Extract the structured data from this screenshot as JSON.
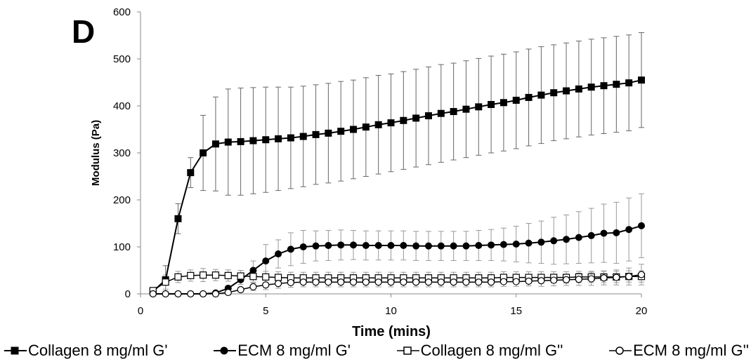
{
  "panel_letter": "D",
  "chart_data": {
    "type": "line",
    "xlabel": "Time (mins)",
    "ylabel": "Modulus (Pa)",
    "xlim": [
      0,
      20
    ],
    "ylim": [
      0,
      600
    ],
    "xticks": [
      0,
      5,
      10,
      15,
      20
    ],
    "yticks": [
      0,
      100,
      200,
      300,
      400,
      500,
      600
    ],
    "grid": false,
    "legend_position": "bottom",
    "series": [
      {
        "name": "Collagen 8 mg/ml G'",
        "marker": "square-filled",
        "points": [
          [
            0.5,
            5
          ],
          [
            1.0,
            30
          ],
          [
            1.5,
            160
          ],
          [
            2.0,
            258
          ],
          [
            2.5,
            300
          ],
          [
            3.0,
            319
          ],
          [
            3.5,
            323
          ],
          [
            4.0,
            324
          ],
          [
            4.5,
            326
          ],
          [
            5.0,
            328
          ],
          [
            5.5,
            330
          ],
          [
            6.0,
            332
          ],
          [
            6.5,
            335
          ],
          [
            7.0,
            339
          ],
          [
            7.5,
            342
          ],
          [
            8.0,
            346
          ],
          [
            8.5,
            350
          ],
          [
            9.0,
            355
          ],
          [
            9.5,
            360
          ],
          [
            10.0,
            364
          ],
          [
            10.5,
            369
          ],
          [
            11.0,
            374
          ],
          [
            11.5,
            379
          ],
          [
            12.0,
            384
          ],
          [
            12.5,
            388
          ],
          [
            13.0,
            393
          ],
          [
            13.5,
            398
          ],
          [
            14.0,
            403
          ],
          [
            14.5,
            407
          ],
          [
            15.0,
            412
          ],
          [
            15.5,
            418
          ],
          [
            16.0,
            423
          ],
          [
            16.5,
            428
          ],
          [
            17.0,
            432
          ],
          [
            17.5,
            436
          ],
          [
            18.0,
            440
          ],
          [
            18.5,
            443
          ],
          [
            19.0,
            446
          ],
          [
            19.5,
            449
          ],
          [
            20.0,
            455
          ]
        ],
        "errors": [
          3,
          30,
          32,
          32,
          80,
          100,
          113,
          114,
          113,
          112,
          110,
          108,
          107,
          106,
          106,
          106,
          105,
          105,
          105,
          104,
          104,
          104,
          104,
          104,
          103,
          103,
          103,
          103,
          103,
          103,
          103,
          103,
          102,
          102,
          102,
          102,
          102,
          102,
          102,
          101
        ]
      },
      {
        "name": "ECM 8 mg/ml G'",
        "marker": "circle-filled",
        "points": [
          [
            0.5,
            0
          ],
          [
            1.0,
            0
          ],
          [
            1.5,
            0
          ],
          [
            2.0,
            0
          ],
          [
            2.5,
            0
          ],
          [
            3.0,
            2
          ],
          [
            3.5,
            12
          ],
          [
            4.0,
            30
          ],
          [
            4.5,
            50
          ],
          [
            5.0,
            70
          ],
          [
            5.5,
            85
          ],
          [
            6.0,
            95
          ],
          [
            6.5,
            100
          ],
          [
            7.0,
            102
          ],
          [
            7.5,
            103
          ],
          [
            8.0,
            104
          ],
          [
            8.5,
            104
          ],
          [
            9.0,
            103
          ],
          [
            9.5,
            103
          ],
          [
            10.0,
            103
          ],
          [
            10.5,
            103
          ],
          [
            11.0,
            102
          ],
          [
            11.5,
            102
          ],
          [
            12.0,
            102
          ],
          [
            12.5,
            102
          ],
          [
            13.0,
            102
          ],
          [
            13.5,
            103
          ],
          [
            14.0,
            104
          ],
          [
            14.5,
            105
          ],
          [
            15.0,
            106
          ],
          [
            15.5,
            108
          ],
          [
            16.0,
            110
          ],
          [
            16.5,
            113
          ],
          [
            17.0,
            116
          ],
          [
            17.5,
            120
          ],
          [
            18.0,
            124
          ],
          [
            18.5,
            129
          ],
          [
            19.0,
            130
          ],
          [
            19.5,
            137
          ],
          [
            20.0,
            145
          ]
        ],
        "errors": [
          0,
          0,
          0,
          0,
          0,
          2,
          5,
          10,
          20,
          35,
          30,
          35,
          35,
          32,
          32,
          32,
          31,
          31,
          31,
          31,
          31,
          31,
          31,
          31,
          31,
          31,
          32,
          33,
          35,
          38,
          42,
          45,
          50,
          52,
          55,
          58,
          62,
          65,
          67,
          68
        ]
      },
      {
        "name": "Collagen 8 mg/ml G''",
        "marker": "square-open",
        "points": [
          [
            0.5,
            7
          ],
          [
            1.0,
            25
          ],
          [
            1.5,
            36
          ],
          [
            2.0,
            39
          ],
          [
            2.5,
            40
          ],
          [
            3.0,
            40
          ],
          [
            3.5,
            39
          ],
          [
            4.0,
            38
          ],
          [
            4.5,
            37
          ],
          [
            5.0,
            36
          ],
          [
            5.5,
            35
          ],
          [
            6.0,
            34
          ],
          [
            6.5,
            34
          ],
          [
            7.0,
            34
          ],
          [
            7.5,
            34
          ],
          [
            8.0,
            34
          ],
          [
            8.5,
            34
          ],
          [
            9.0,
            34
          ],
          [
            9.5,
            34
          ],
          [
            10.0,
            34
          ],
          [
            10.5,
            34
          ],
          [
            11.0,
            34
          ],
          [
            11.5,
            34
          ],
          [
            12.0,
            34
          ],
          [
            12.5,
            34
          ],
          [
            13.0,
            34
          ],
          [
            13.5,
            34
          ],
          [
            14.0,
            34
          ],
          [
            14.5,
            35
          ],
          [
            15.0,
            35
          ],
          [
            15.5,
            35
          ],
          [
            16.0,
            35
          ],
          [
            16.5,
            35
          ],
          [
            17.0,
            35
          ],
          [
            17.5,
            36
          ],
          [
            18.0,
            36
          ],
          [
            18.5,
            36
          ],
          [
            19.0,
            36
          ],
          [
            19.5,
            37
          ],
          [
            20.0,
            37
          ]
        ],
        "errors": [
          5,
          15,
          12,
          12,
          14,
          12,
          12,
          12,
          12,
          12,
          12,
          12,
          12,
          12,
          12,
          12,
          12,
          12,
          12,
          12,
          12,
          12,
          12,
          12,
          12,
          12,
          12,
          12,
          12,
          12,
          12,
          12,
          12,
          12,
          12,
          12,
          12,
          12,
          12,
          12
        ]
      },
      {
        "name": "ECM 8 mg/ml G''",
        "marker": "circle-open",
        "points": [
          [
            0.5,
            0
          ],
          [
            1.0,
            0
          ],
          [
            1.5,
            0
          ],
          [
            2.0,
            0
          ],
          [
            2.5,
            0
          ],
          [
            3.0,
            0
          ],
          [
            3.5,
            3
          ],
          [
            4.0,
            9
          ],
          [
            4.5,
            15
          ],
          [
            5.0,
            19
          ],
          [
            5.5,
            22
          ],
          [
            6.0,
            24
          ],
          [
            6.5,
            25
          ],
          [
            7.0,
            25
          ],
          [
            7.5,
            25
          ],
          [
            8.0,
            25
          ],
          [
            8.5,
            25
          ],
          [
            9.0,
            25
          ],
          [
            9.5,
            25
          ],
          [
            10.0,
            25
          ],
          [
            10.5,
            25
          ],
          [
            11.0,
            25
          ],
          [
            11.5,
            25
          ],
          [
            12.0,
            25
          ],
          [
            12.5,
            25
          ],
          [
            13.0,
            25
          ],
          [
            13.5,
            25
          ],
          [
            14.0,
            25
          ],
          [
            14.5,
            26
          ],
          [
            15.0,
            26
          ],
          [
            15.5,
            27
          ],
          [
            16.0,
            28
          ],
          [
            16.5,
            29
          ],
          [
            17.0,
            30
          ],
          [
            17.5,
            31
          ],
          [
            18.0,
            32
          ],
          [
            18.5,
            34
          ],
          [
            19.0,
            35
          ],
          [
            19.5,
            37
          ],
          [
            20.0,
            41
          ]
        ],
        "errors": [
          0,
          0,
          0,
          0,
          0,
          0,
          3,
          5,
          8,
          10,
          10,
          10,
          10,
          10,
          10,
          10,
          10,
          10,
          10,
          10,
          10,
          10,
          10,
          10,
          10,
          10,
          10,
          10,
          10,
          10,
          10,
          12,
          12,
          12,
          13,
          14,
          15,
          16,
          18,
          22
        ]
      }
    ]
  }
}
